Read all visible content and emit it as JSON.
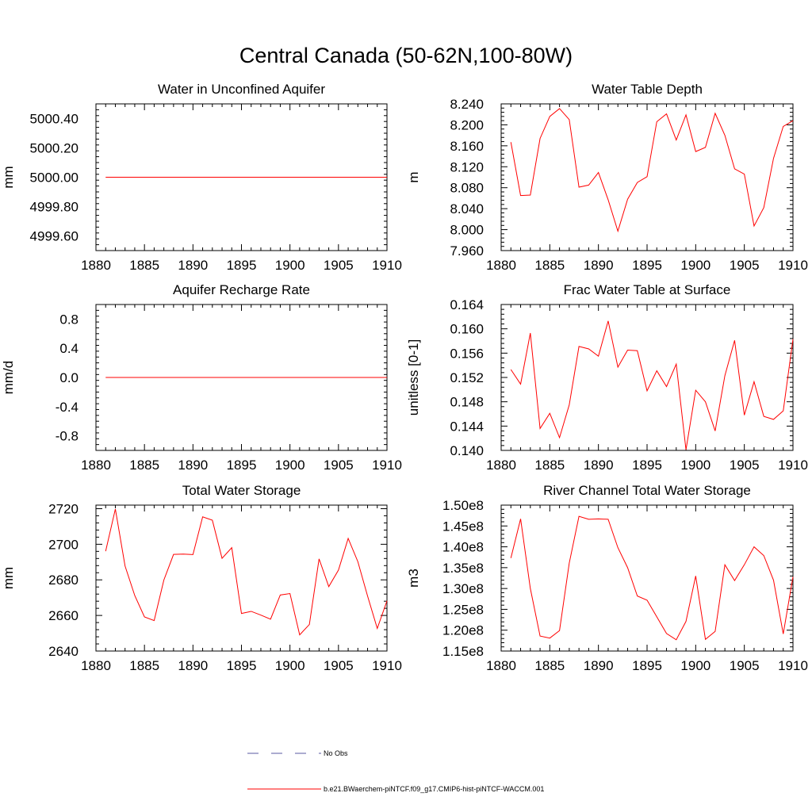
{
  "title": "Central Canada (50-62N,100-80W)",
  "legend": {
    "obs_label": "No Obs",
    "model_label": "b.e21.BWaerchem-piNTCF.f09_g17.CMIP6-hist-piNTCF-WACCM.001",
    "obs_color": "#5a5aa0",
    "model_color": "#ff0000"
  },
  "chart_data": [
    {
      "type": "line",
      "title": "Water in Unconfined Aquifer",
      "ylabel": "mm",
      "xlim": [
        1880,
        1910
      ],
      "ylim": [
        4999.5,
        5000.5
      ],
      "xticks": [
        1880,
        1885,
        1890,
        1895,
        1900,
        1905,
        1910
      ],
      "yticks": [
        4999.6,
        4999.8,
        5000.0,
        5000.2,
        5000.4
      ],
      "ytick_labels": [
        "4999.60",
        "4999.80",
        "5000.00",
        "5000.20",
        "5000.40"
      ],
      "x": [
        1881,
        1910
      ],
      "series": [
        {
          "values": [
            5000.0,
            5000.0
          ],
          "color": "#ff0000"
        }
      ]
    },
    {
      "type": "line",
      "title": "Water Table Depth",
      "ylabel": "m",
      "xlim": [
        1880,
        1910
      ],
      "ylim": [
        7.96,
        8.24
      ],
      "xticks": [
        1880,
        1885,
        1890,
        1895,
        1900,
        1905,
        1910
      ],
      "yticks": [
        7.96,
        8.0,
        8.04,
        8.08,
        8.12,
        8.16,
        8.2,
        8.24
      ],
      "ytick_labels": [
        "7.960",
        "8.000",
        "8.040",
        "8.080",
        "8.120",
        "8.160",
        "8.200",
        "8.240"
      ],
      "x": [
        1881,
        1882,
        1883,
        1884,
        1885,
        1886,
        1887,
        1888,
        1889,
        1890,
        1891,
        1892,
        1893,
        1894,
        1895,
        1896,
        1897,
        1898,
        1899,
        1900,
        1901,
        1902,
        1903,
        1904,
        1905,
        1906,
        1907,
        1908,
        1909,
        1910
      ],
      "series": [
        {
          "values": [
            8.167,
            8.065,
            8.066,
            8.174,
            8.216,
            8.231,
            8.21,
            8.081,
            8.085,
            8.109,
            8.057,
            7.997,
            8.058,
            8.09,
            8.101,
            8.206,
            8.221,
            8.171,
            8.219,
            8.149,
            8.157,
            8.222,
            8.18,
            8.116,
            8.106,
            8.007,
            8.042,
            8.136,
            8.197,
            8.208
          ],
          "color": "#ff0000"
        }
      ]
    },
    {
      "type": "line",
      "title": "Aquifer Recharge Rate",
      "ylabel": "mm/d",
      "xlim": [
        1880,
        1910
      ],
      "ylim": [
        -1.0,
        1.0
      ],
      "xticks": [
        1880,
        1885,
        1890,
        1895,
        1900,
        1905,
        1910
      ],
      "yticks": [
        -0.8,
        -0.4,
        0.0,
        0.4,
        0.8
      ],
      "ytick_labels": [
        "-0.8",
        "-0.4",
        "0.0",
        "0.4",
        "0.8"
      ],
      "x": [
        1881,
        1910
      ],
      "series": [
        {
          "values": [
            0.0,
            0.0
          ],
          "color": "#ff0000"
        }
      ]
    },
    {
      "type": "line",
      "title": "Frac Water Table at Surface",
      "ylabel": "unitless [0-1]",
      "xlim": [
        1880,
        1910
      ],
      "ylim": [
        0.14,
        0.164
      ],
      "xticks": [
        1880,
        1885,
        1890,
        1895,
        1900,
        1905,
        1910
      ],
      "yticks": [
        0.14,
        0.144,
        0.148,
        0.152,
        0.156,
        0.16,
        0.164
      ],
      "ytick_labels": [
        "0.140",
        "0.144",
        "0.148",
        "0.152",
        "0.156",
        "0.160",
        "0.164"
      ],
      "x": [
        1881,
        1882,
        1883,
        1884,
        1885,
        1886,
        1887,
        1888,
        1889,
        1890,
        1891,
        1892,
        1893,
        1894,
        1895,
        1896,
        1897,
        1898,
        1899,
        1900,
        1901,
        1902,
        1903,
        1904,
        1905,
        1906,
        1907,
        1908,
        1909,
        1910
      ],
      "series": [
        {
          "values": [
            0.1533,
            0.1509,
            0.1593,
            0.1436,
            0.1461,
            0.1421,
            0.1475,
            0.1571,
            0.1567,
            0.1555,
            0.1613,
            0.1537,
            0.1565,
            0.1564,
            0.1498,
            0.1531,
            0.1505,
            0.1542,
            0.1401,
            0.1499,
            0.148,
            0.1432,
            0.1523,
            0.1581,
            0.1458,
            0.1513,
            0.1456,
            0.1451,
            0.1465,
            0.1583
          ],
          "color": "#ff0000"
        }
      ]
    },
    {
      "type": "line",
      "title": "Total Water Storage",
      "ylabel": "mm",
      "xlim": [
        1880,
        1910
      ],
      "ylim": [
        2640,
        2722
      ],
      "xticks": [
        1880,
        1885,
        1890,
        1895,
        1900,
        1905,
        1910
      ],
      "yticks": [
        2640,
        2660,
        2680,
        2700,
        2720
      ],
      "ytick_labels": [
        "2640",
        "2660",
        "2680",
        "2700",
        "2720"
      ],
      "x": [
        1881,
        1882,
        1883,
        1884,
        1885,
        1886,
        1887,
        1888,
        1889,
        1890,
        1891,
        1892,
        1893,
        1894,
        1895,
        1896,
        1897,
        1898,
        1899,
        1900,
        1901,
        1902,
        1903,
        1904,
        1905,
        1906,
        1907,
        1908,
        1909,
        1910
      ],
      "series": [
        {
          "values": [
            2696.1,
            2719.8,
            2687.8,
            2671.2,
            2659.2,
            2657.1,
            2679.9,
            2694.3,
            2694.5,
            2694.2,
            2715.4,
            2713.5,
            2692.1,
            2698.1,
            2661.1,
            2662.3,
            2660.2,
            2657.9,
            2671.5,
            2672.3,
            2649.1,
            2654.9,
            2691.8,
            2676.2,
            2685.5,
            2703.3,
            2690.2,
            2670.9,
            2652.7,
            2668.2
          ],
          "color": "#ff0000"
        }
      ]
    },
    {
      "type": "line",
      "title": "River Channel Total Water Storage",
      "ylabel": "m3",
      "xlim": [
        1880,
        1910
      ],
      "ylim": [
        115000000,
        150000000
      ],
      "xticks": [
        1880,
        1885,
        1890,
        1895,
        1900,
        1905,
        1910
      ],
      "yticks": [
        115000000,
        120000000,
        125000000,
        130000000,
        135000000,
        140000000,
        145000000,
        150000000
      ],
      "ytick_labels": [
        "1.15e8",
        "1.20e8",
        "1.25e8",
        "1.30e8",
        "1.35e8",
        "1.40e8",
        "1.45e8",
        "1.50e8"
      ],
      "x": [
        1881,
        1882,
        1883,
        1884,
        1885,
        1886,
        1887,
        1888,
        1889,
        1890,
        1891,
        1892,
        1893,
        1894,
        1895,
        1896,
        1897,
        1898,
        1899,
        1900,
        1901,
        1902,
        1903,
        1904,
        1905,
        1906,
        1907,
        1908,
        1909,
        1910
      ],
      "series": [
        {
          "values": [
            137300000,
            146700000,
            130000000,
            118600000,
            118100000,
            119900000,
            136100000,
            147300000,
            146600000,
            146700000,
            146600000,
            139800000,
            135000000,
            128200000,
            127200000,
            123200000,
            119200000,
            117700000,
            122100000,
            133000000,
            117800000,
            119700000,
            135700000,
            131900000,
            135700000,
            140000000,
            137900000,
            132000000,
            119100000,
            132800000
          ],
          "color": "#ff0000"
        }
      ]
    }
  ]
}
